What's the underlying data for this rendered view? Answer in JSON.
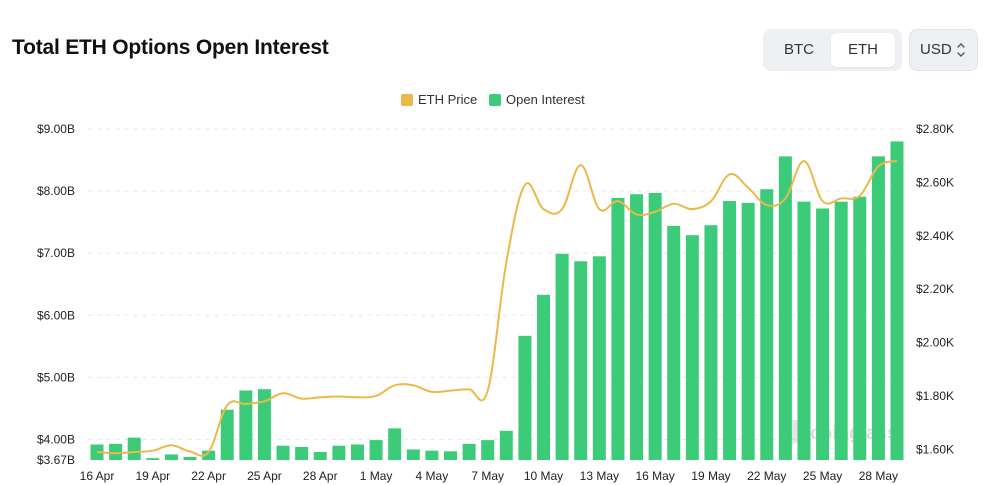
{
  "header": {
    "title": "Total ETH Options Open Interest"
  },
  "toggle": {
    "btc_label": "BTC",
    "eth_label": "ETH",
    "active": "ETH"
  },
  "currency": {
    "value": "USD",
    "icon": "chevron-up-down-icon"
  },
  "colors": {
    "bar": "#3ccb78",
    "line": "#ebb84a",
    "grid": "#ececec",
    "text": "#222222"
  },
  "chart_data": {
    "type": "bar",
    "title": "Total ETH Options Open Interest",
    "legend": {
      "placement": "top-center",
      "items": [
        "ETH Price",
        "Open Interest"
      ]
    },
    "x_tick_labels": [
      "16 Apr",
      "19 Apr",
      "22 Apr",
      "25 Apr",
      "28 Apr",
      "1 May",
      "4 May",
      "7 May",
      "10 May",
      "13 May",
      "16 May",
      "19 May",
      "22 May",
      "25 May",
      "28 May"
    ],
    "categories": [
      "16 Apr",
      "17 Apr",
      "18 Apr",
      "19 Apr",
      "20 Apr",
      "21 Apr",
      "22 Apr",
      "23 Apr",
      "24 Apr",
      "25 Apr",
      "26 Apr",
      "27 Apr",
      "28 Apr",
      "29 Apr",
      "30 Apr",
      "1 May",
      "2 May",
      "3 May",
      "4 May",
      "5 May",
      "6 May",
      "7 May",
      "8 May",
      "9 May",
      "10 May",
      "11 May",
      "12 May",
      "13 May",
      "14 May",
      "15 May",
      "16 May",
      "17 May",
      "18 May",
      "19 May",
      "20 May",
      "21 May",
      "22 May",
      "23 May",
      "24 May",
      "25 May",
      "26 May",
      "27 May",
      "28 May",
      "29 May"
    ],
    "y_left": {
      "ylim": [
        3.67,
        9.0
      ],
      "ticks": [
        "$3.67B",
        "$4.00B",
        "$5.00B",
        "$6.00B",
        "$7.00B",
        "$8.00B",
        "$9.00B"
      ],
      "tick_values": [
        3.67,
        4,
        5,
        6,
        7,
        8,
        9
      ]
    },
    "y_right": {
      "ylim": [
        1560,
        2800
      ],
      "ticks": [
        "$1.60K",
        "$1.80K",
        "$2.00K",
        "$2.20K",
        "$2.40K",
        "$2.60K",
        "$2.80K"
      ],
      "tick_values": [
        1600,
        1800,
        2000,
        2200,
        2400,
        2600,
        2800
      ]
    },
    "grid": true,
    "watermark": "coinglass",
    "series": [
      {
        "name": "Open Interest",
        "type": "bar",
        "axis": "left",
        "values": [
          3.92,
          3.93,
          4.03,
          3.7,
          3.76,
          3.72,
          3.82,
          4.48,
          4.79,
          4.81,
          3.9,
          3.88,
          3.8,
          3.9,
          3.92,
          3.99,
          4.18,
          3.84,
          3.82,
          3.81,
          3.93,
          3.99,
          4.14,
          5.67,
          6.33,
          6.99,
          6.87,
          6.95,
          7.89,
          7.95,
          7.97,
          7.44,
          7.29,
          7.45,
          7.84,
          7.81,
          8.03,
          8.56,
          7.83,
          7.72,
          7.83,
          7.91,
          8.56,
          8.8
        ]
      },
      {
        "name": "ETH Price",
        "type": "line",
        "axis": "right",
        "values": [
          1590,
          1585,
          1590,
          1595,
          1615,
          1592,
          1590,
          1765,
          1770,
          1780,
          1810,
          1790,
          1795,
          1798,
          1795,
          1800,
          1840,
          1840,
          1815,
          1820,
          1825,
          1820,
          2300,
          2590,
          2500,
          2500,
          2665,
          2500,
          2530,
          2480,
          2490,
          2520,
          2500,
          2530,
          2630,
          2580,
          2515,
          2540,
          2680,
          2530,
          2540,
          2550,
          2660,
          2680
        ]
      }
    ]
  }
}
